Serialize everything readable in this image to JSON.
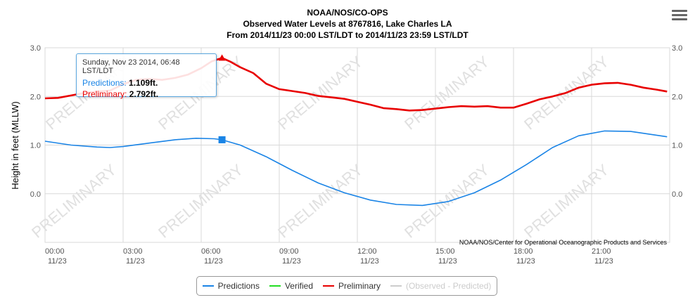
{
  "header": {
    "line1": "NOAA/NOS/CO-OPS",
    "line2": "Observed Water Levels at 8767816, Lake Charles LA",
    "line3": "From 2014/11/23 00:00 LST/LDT to 2014/11/23 23:59 LST/LDT"
  },
  "menu_icon": "hamburger-menu-icon",
  "credit": "NOAA/NOS/Center for Operational Oceanographic Products and Services",
  "tooltip": {
    "header": "Sunday, Nov 23 2014, 06:48 LST/LDT",
    "pred_label": "Predictions: ",
    "pred_value": "1.109ft.",
    "prelim_label": "Preliminary: ",
    "prelim_value": "2.792ft."
  },
  "legend": {
    "predictions": "Predictions",
    "verified": "Verified",
    "preliminary": "Preliminary",
    "difference": "(Observed - Predicted)"
  },
  "colors": {
    "predictions": "#1a84e6",
    "verified": "#22dd22",
    "preliminary": "#e80000",
    "difference": "#cccccc",
    "watermark": "#e0e0e0"
  },
  "watermark_text": "PRELIMINARY",
  "chart_data": {
    "type": "line",
    "ylabel": "Height in feet (MLLW)",
    "ylim": [
      -1.0,
      3.0
    ],
    "yticks": [
      {
        "v": 3.0,
        "label": "3.0"
      },
      {
        "v": 2.0,
        "label": "2.0"
      },
      {
        "v": 1.0,
        "label": "1.0"
      },
      {
        "v": 0.0,
        "label": "0.0"
      }
    ],
    "xlim": [
      0,
      24
    ],
    "xticks": [
      {
        "h": 0,
        "time": "00:00",
        "date": "11/23"
      },
      {
        "h": 3,
        "time": "03:00",
        "date": "11/23"
      },
      {
        "h": 6,
        "time": "06:00",
        "date": "11/23"
      },
      {
        "h": 9,
        "time": "09:00",
        "date": "11/23"
      },
      {
        "h": 12,
        "time": "12:00",
        "date": "11/23"
      },
      {
        "h": 15,
        "time": "15:00",
        "date": "11/23"
      },
      {
        "h": 18,
        "time": "18:00",
        "date": "11/23"
      },
      {
        "h": 21,
        "time": "21:00",
        "date": "11/23"
      }
    ],
    "series": [
      {
        "name": "Predictions",
        "x": [
          0,
          1,
          2,
          2.5,
          3,
          4,
          5,
          5.8,
          6.5,
          6.8,
          7.5,
          8.5,
          9.5,
          10.5,
          11.5,
          12.5,
          13.5,
          14.5,
          15.5,
          16.5,
          17.5,
          18.5,
          19.5,
          20.5,
          21.5,
          22.5,
          23.9
        ],
        "y": [
          1.08,
          1.0,
          0.96,
          0.95,
          0.97,
          1.04,
          1.11,
          1.14,
          1.13,
          1.109,
          1.0,
          0.76,
          0.48,
          0.22,
          0.02,
          -0.13,
          -0.22,
          -0.24,
          -0.16,
          0.02,
          0.28,
          0.6,
          0.95,
          1.19,
          1.29,
          1.28,
          1.17
        ]
      },
      {
        "name": "Preliminary",
        "x": [
          0,
          0.5,
          1,
          1.5,
          2,
          2.5,
          3,
          3.5,
          4,
          4.5,
          5,
          5.5,
          6,
          6.4,
          6.8,
          7.1,
          7.5,
          8,
          8.5,
          9,
          9.5,
          10,
          10.5,
          11,
          11.5,
          12,
          12.5,
          13,
          13.5,
          14,
          14.5,
          15,
          15.5,
          16,
          16.5,
          17,
          17.5,
          18,
          18.5,
          19,
          19.5,
          20,
          20.5,
          21,
          21.5,
          22,
          22.5,
          23,
          23.5,
          23.9
        ],
        "y": [
          1.96,
          1.97,
          2.02,
          2.07,
          2.1,
          2.12,
          2.25,
          2.34,
          2.36,
          2.34,
          2.38,
          2.45,
          2.58,
          2.72,
          2.79,
          2.72,
          2.6,
          2.48,
          2.26,
          2.15,
          2.11,
          2.07,
          2.01,
          1.98,
          1.95,
          1.89,
          1.83,
          1.76,
          1.74,
          1.71,
          1.72,
          1.75,
          1.78,
          1.8,
          1.79,
          1.8,
          1.77,
          1.77,
          1.85,
          1.94,
          2.0,
          2.07,
          2.18,
          2.24,
          2.27,
          2.28,
          2.24,
          2.18,
          2.14,
          2.1
        ]
      }
    ],
    "highlight": {
      "x": 6.8,
      "pred": 1.109,
      "prelim": 2.792
    }
  }
}
